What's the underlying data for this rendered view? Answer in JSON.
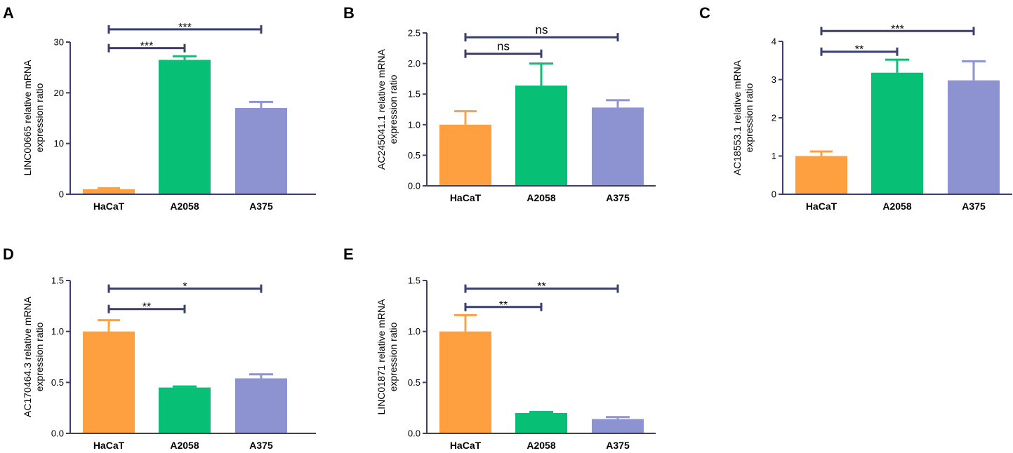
{
  "colors": {
    "axis": "#3b3f6b",
    "bracket": "#3b3f6b",
    "HaCaT": "#ffa040",
    "A2058": "#07c076",
    "A375": "#8d93d0"
  },
  "chart_data": [
    {
      "type": "bar",
      "panel": "A",
      "categories": [
        "HaCaT",
        "A2058",
        "A375"
      ],
      "values": [
        1.0,
        26.5,
        17.0
      ],
      "errors": [
        0.2,
        0.7,
        1.2
      ],
      "ylabel": [
        "LINC00665 relative mRNA",
        "expression ratio"
      ],
      "ylim": [
        0,
        30
      ],
      "yticks": [
        0,
        10,
        20,
        30
      ],
      "ytick_labels": [
        "0",
        "10",
        "20",
        "30"
      ],
      "significance": [
        {
          "from": "HaCaT",
          "to": "A2058",
          "level": 28.8,
          "label": "***"
        },
        {
          "from": "HaCaT",
          "to": "A375",
          "level": 32.5,
          "label": "***"
        }
      ]
    },
    {
      "type": "bar",
      "panel": "B",
      "categories": [
        "HaCaT",
        "A2058",
        "A375"
      ],
      "values": [
        1.0,
        1.64,
        1.28
      ],
      "errors": [
        0.22,
        0.36,
        0.12
      ],
      "ylabel": [
        "AC245041.1 relative mRNA",
        "expression ratio"
      ],
      "ylim": [
        0,
        2.5
      ],
      "yticks": [
        0,
        0.5,
        1.0,
        1.5,
        2.0,
        2.5
      ],
      "ytick_labels": [
        "0.0",
        "0.5",
        "1.0",
        "1.5",
        "2.0",
        "2.5"
      ],
      "significance": [
        {
          "from": "HaCaT",
          "to": "A2058",
          "level": 2.16,
          "label": "ns"
        },
        {
          "from": "HaCaT",
          "to": "A375",
          "level": 2.43,
          "label": "ns"
        }
      ]
    },
    {
      "type": "bar",
      "panel": "C",
      "categories": [
        "HaCaT",
        "A2058",
        "A375"
      ],
      "values": [
        1.0,
        3.18,
        2.98
      ],
      "errors": [
        0.12,
        0.34,
        0.5
      ],
      "ylabel": [
        "AC18553.1 relative mRNA",
        "expression ratio"
      ],
      "ylim": [
        0,
        4
      ],
      "yticks": [
        0,
        1,
        2,
        3,
        4
      ],
      "ytick_labels": [
        "0",
        "1",
        "2",
        "3",
        "4"
      ],
      "significance": [
        {
          "from": "HaCaT",
          "to": "A2058",
          "level": 3.73,
          "label": "**"
        },
        {
          "from": "HaCaT",
          "to": "A375",
          "level": 4.27,
          "label": "***"
        }
      ]
    },
    {
      "type": "bar",
      "panel": "D",
      "categories": [
        "HaCaT",
        "A2058",
        "A375"
      ],
      "values": [
        1.0,
        0.45,
        0.54
      ],
      "errors": [
        0.11,
        0.01,
        0.04
      ],
      "ylabel": [
        "AC170464.3 relative mRNA",
        "expression ratio"
      ],
      "ylim": [
        0,
        1.5
      ],
      "yticks": [
        0,
        0.5,
        1.0,
        1.5
      ],
      "ytick_labels": [
        "0.0",
        "0.5",
        "1.0",
        "1.5"
      ],
      "significance": [
        {
          "from": "HaCaT",
          "to": "A2058",
          "level": 1.22,
          "label": "**"
        },
        {
          "from": "HaCaT",
          "to": "A375",
          "level": 1.42,
          "label": "*"
        }
      ]
    },
    {
      "type": "bar",
      "panel": "E",
      "categories": [
        "HaCaT",
        "A2058",
        "A375"
      ],
      "values": [
        1.0,
        0.2,
        0.14
      ],
      "errors": [
        0.16,
        0.01,
        0.02
      ],
      "ylabel": [
        "LINC01871 relative mRNA",
        "expression ratio"
      ],
      "ylim": [
        0,
        1.5
      ],
      "yticks": [
        0,
        0.5,
        1.0,
        1.5
      ],
      "ytick_labels": [
        "0.0",
        "0.5",
        "1.0",
        "1.5"
      ],
      "significance": [
        {
          "from": "HaCaT",
          "to": "A2058",
          "level": 1.24,
          "label": "**"
        },
        {
          "from": "HaCaT",
          "to": "A375",
          "level": 1.42,
          "label": "**"
        }
      ]
    }
  ]
}
